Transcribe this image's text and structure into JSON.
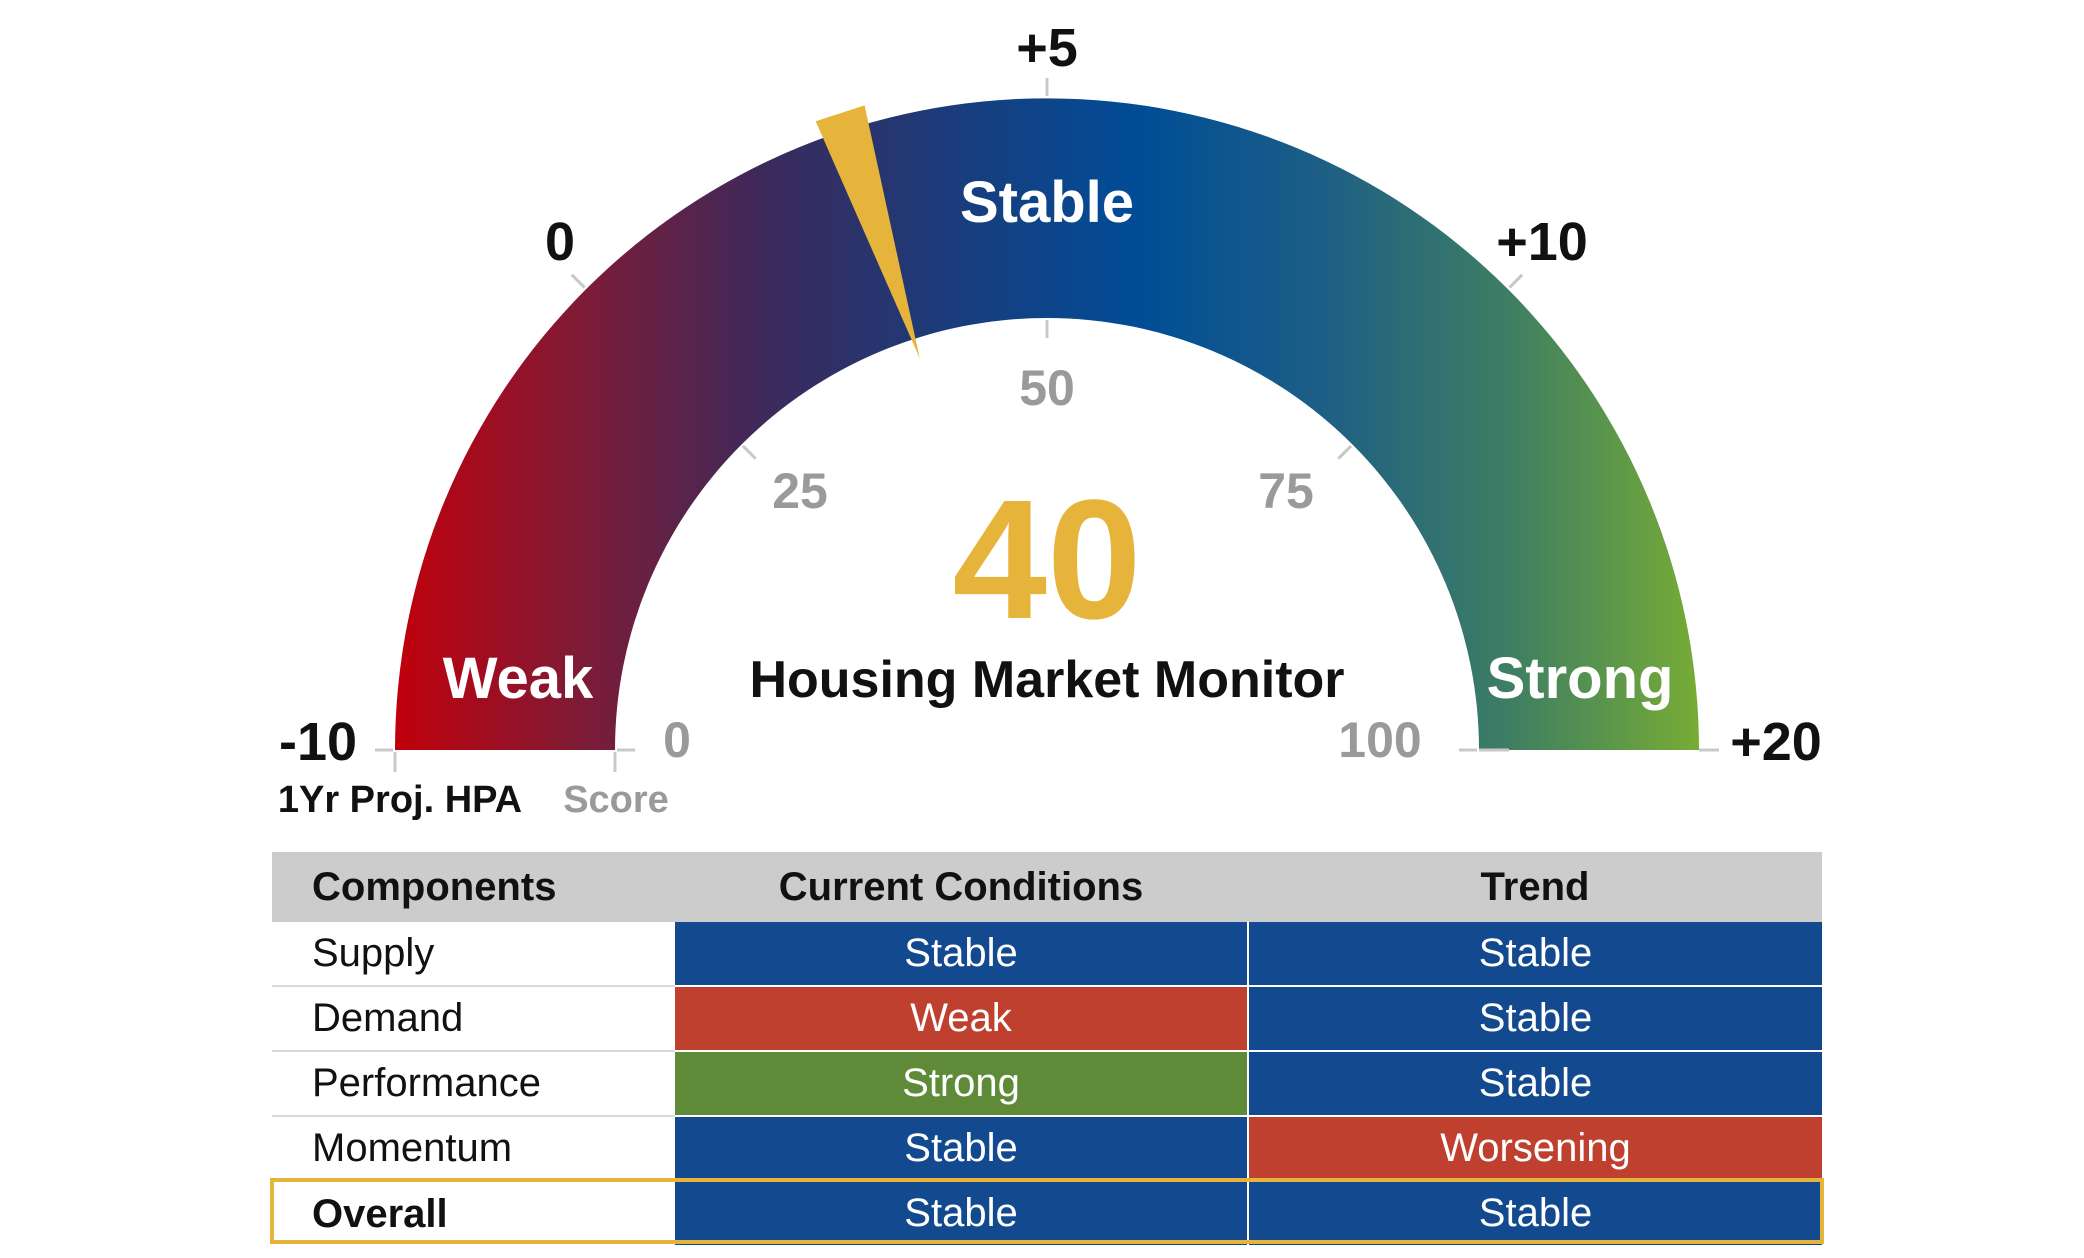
{
  "chart_data": {
    "type": "gauge",
    "title": "Housing Market Monitor",
    "value": 40,
    "score_range": [
      0,
      100
    ],
    "score_ticks": [
      "0",
      "25",
      "50",
      "75",
      "100"
    ],
    "hpa_ticks": [
      "-10",
      "0",
      "+5",
      "+10",
      "+20"
    ],
    "bands": [
      "Weak",
      "Stable",
      "Strong"
    ],
    "outer_axis_label": "1Yr Proj. HPA",
    "inner_axis_label": "Score",
    "gradient_colors": [
      "#c0000b",
      "#7e1b36",
      "#3b2a5c",
      "#1a3c7c",
      "#004d97",
      "#1e5f85",
      "#3f7f62",
      "#77ac35"
    ],
    "needle_color": "#e6b43a"
  },
  "table": {
    "headers": [
      "Components",
      "Current Conditions",
      "Trend"
    ],
    "rows": [
      {
        "component": "Supply",
        "current": "Stable",
        "current_color": "#134a8f",
        "trend": "Stable",
        "trend_color": "#134a8f"
      },
      {
        "component": "Demand",
        "current": "Weak",
        "current_color": "#c0402f",
        "trend": "Stable",
        "trend_color": "#134a8f"
      },
      {
        "component": "Performance",
        "current": "Strong",
        "current_color": "#5f8b39",
        "trend": "Stable",
        "trend_color": "#134a8f"
      },
      {
        "component": "Momentum",
        "current": "Stable",
        "current_color": "#134a8f",
        "trend": "Worsening",
        "trend_color": "#c0402f"
      },
      {
        "component": "Overall",
        "current": "Stable",
        "current_color": "#134a8f",
        "trend": "Stable",
        "trend_color": "#134a8f"
      }
    ],
    "highlight_color": "#e6b43a"
  }
}
